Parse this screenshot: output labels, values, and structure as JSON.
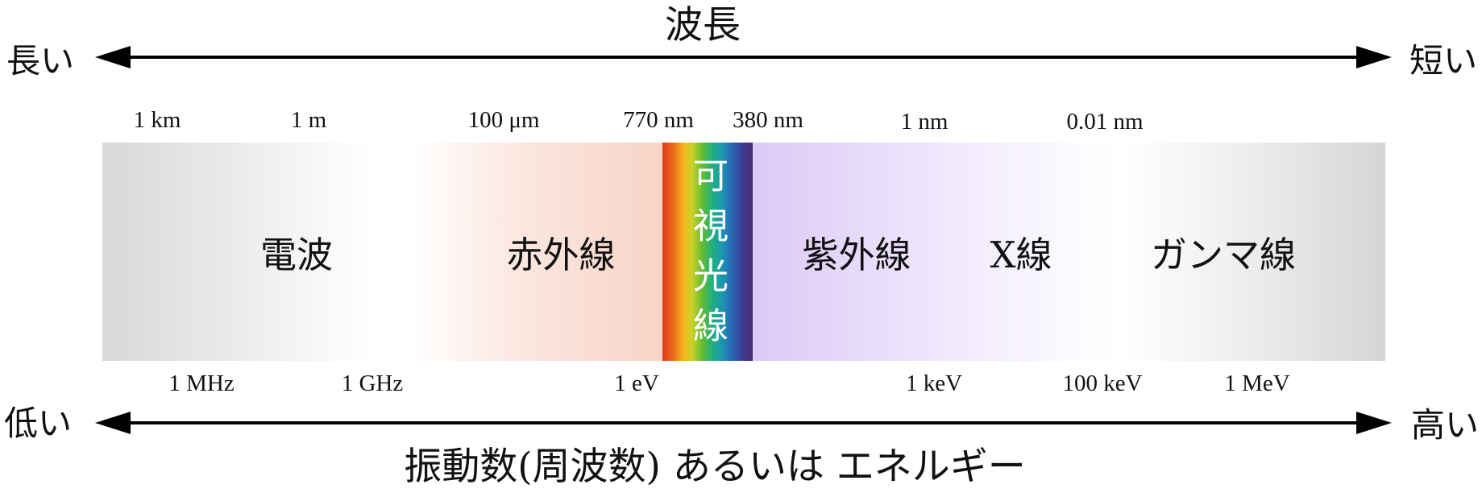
{
  "title_top": "波長",
  "title_bottom": "振動数(周波数) あるいは エネルギー",
  "top_axis": {
    "left_label": "長い",
    "right_label": "短い",
    "ticks": [
      "1 km",
      "1 m",
      "100 μm",
      "770 nm",
      "380 nm",
      "1 nm",
      "0.01 nm"
    ]
  },
  "bottom_axis": {
    "left_label": "低い",
    "right_label": "高い",
    "ticks": [
      "1 MHz",
      "1 GHz",
      "1 eV",
      "1 keV",
      "100 keV",
      "1 MeV"
    ]
  },
  "bands": {
    "radio": "電波",
    "infrared": "赤外線",
    "visible": "可視光線",
    "ultraviolet": "紫外線",
    "xray": "X線",
    "gamma": "ガンマ線"
  },
  "colors": {
    "radio": "#d8d8d8",
    "infrared": "#f8d4c7",
    "ultraviolet": "#dcc9f6",
    "gamma": "#d5d5d5",
    "visible_red": "#e2381f",
    "visible_violet": "#4a2b6e",
    "arrow": "#000000"
  }
}
